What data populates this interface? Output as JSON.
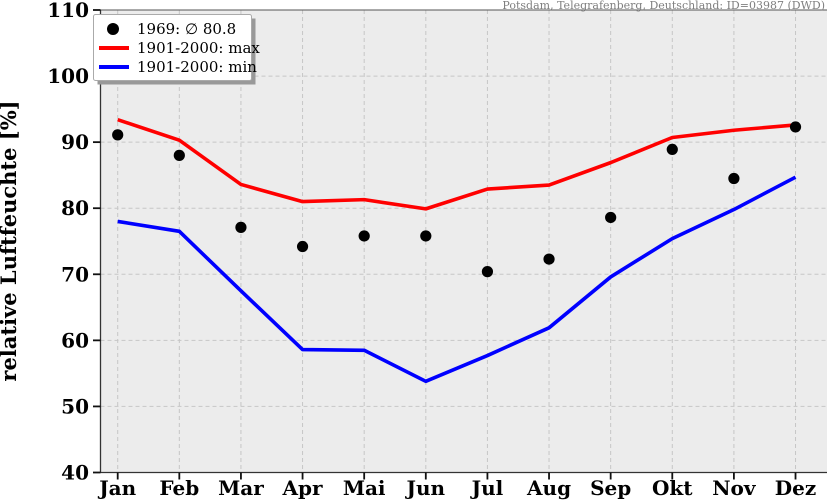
{
  "station_header": "Potsdam, Telegrafenberg, Deutschland: ID=03987 (DWD)",
  "legend": {
    "items": [
      {
        "label": "1969: ∅ 80.8",
        "marker": "dot",
        "color": "#000000"
      },
      {
        "label": "1901-2000: max",
        "marker": "line",
        "color": "#ff0000"
      },
      {
        "label": "1901-2000: min",
        "marker": "line",
        "color": "#0000ff"
      }
    ]
  },
  "chart_data": {
    "type": "line",
    "title": "",
    "annotation": "Potsdam, Telegrafenberg, Deutschland: ID=03987 (DWD)",
    "categories": [
      "Jan",
      "Feb",
      "Mar",
      "Apr",
      "Mai",
      "Jun",
      "Jul",
      "Aug",
      "Sep",
      "Okt",
      "Nov",
      "Dez"
    ],
    "series": [
      {
        "name": "1969: ∅ 80.8",
        "type": "scatter",
        "color": "#000000",
        "values": [
          91.1,
          88.0,
          77.1,
          74.2,
          75.8,
          75.8,
          70.4,
          72.3,
          78.6,
          88.9,
          84.5,
          92.3
        ]
      },
      {
        "name": "1901-2000: max",
        "type": "line",
        "color": "#ff0000",
        "values": [
          93.4,
          90.3,
          83.6,
          81.0,
          81.3,
          79.9,
          82.9,
          83.5,
          86.9,
          90.7,
          91.8,
          92.6
        ]
      },
      {
        "name": "1901-2000: min",
        "type": "line",
        "color": "#0000ff",
        "values": [
          78.0,
          76.5,
          67.5,
          58.6,
          58.5,
          53.8,
          57.7,
          61.9,
          69.6,
          75.4,
          79.8,
          84.7
        ]
      }
    ],
    "xlabel": "",
    "ylabel": "relative Luftfeuchte [%]",
    "ylim": [
      40,
      110
    ],
    "yticks": [
      40,
      50,
      60,
      70,
      80,
      90,
      100,
      110
    ],
    "grid": true,
    "grid_style": "dashed",
    "legend_position": "upper left",
    "mean_1969": 80.8
  },
  "colors": {
    "plot_bg": "#ececec",
    "grid": "#c6c6c6",
    "spine": "#555555",
    "tick": "#111111",
    "annotation": "#7f7f7f",
    "legend_bg": "#ffffff",
    "legend_border": "#aaaaaa",
    "legend_shadow": "#999999"
  }
}
